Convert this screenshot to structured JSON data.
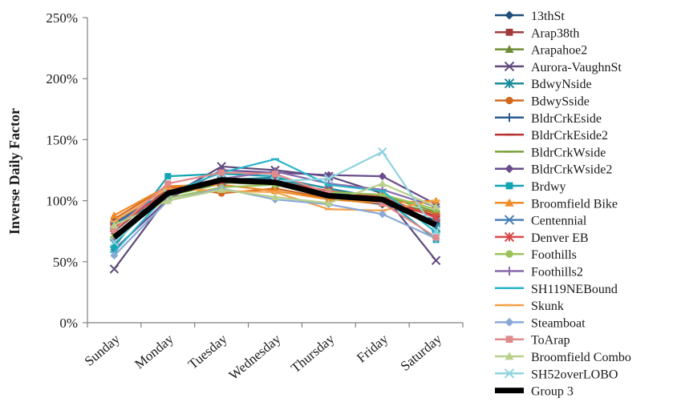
{
  "chart_data": {
    "type": "line",
    "ylabel": "Inverse Daily Factor",
    "xlabel": "",
    "categories": [
      "Sunday",
      "Monday",
      "Tuesday",
      "Wednesday",
      "Thursday",
      "Friday",
      "Saturday"
    ],
    "y_ticks": [
      "0%",
      "50%",
      "100%",
      "150%",
      "200%",
      "250%"
    ],
    "ylim": [
      0,
      250
    ],
    "grid": false,
    "legend_position": "right",
    "series": [
      {
        "name": "13thSt",
        "color": "#1f4e79",
        "marker": "diamond",
        "values": [
          80,
          108,
          118,
          117,
          105,
          100,
          82
        ]
      },
      {
        "name": "Arap38th",
        "color": "#a33a3a",
        "marker": "square",
        "values": [
          75,
          110,
          117,
          115,
          104,
          98,
          88
        ]
      },
      {
        "name": "Arapahoe2",
        "color": "#6e8b35",
        "marker": "triangle",
        "values": [
          72,
          105,
          115,
          113,
          105,
          100,
          90
        ]
      },
      {
        "name": "Aurora-VaughnSt",
        "color": "#5f4a7a",
        "marker": "x",
        "values": [
          44,
          103,
          128,
          125,
          120,
          106,
          51
        ]
      },
      {
        "name": "BdwyNside",
        "color": "#1a8c9c",
        "marker": "star",
        "values": [
          65,
          108,
          117,
          119,
          110,
          102,
          78
        ]
      },
      {
        "name": "BdwySside",
        "color": "#d2691e",
        "marker": "circle",
        "values": [
          85,
          112,
          106,
          110,
          102,
          97,
          90
        ]
      },
      {
        "name": "BldrCrkEside",
        "color": "#2b5c8f",
        "marker": "plus",
        "values": [
          82,
          107,
          115,
          116,
          103,
          97,
          84
        ]
      },
      {
        "name": "BldrCrkEside2",
        "color": "#b83232",
        "marker": "dash",
        "values": [
          78,
          108,
          116,
          115,
          106,
          100,
          87
        ]
      },
      {
        "name": "BldrCrkWside",
        "color": "#7aa33c",
        "marker": "dash",
        "values": [
          70,
          104,
          114,
          118,
          106,
          104,
          91
        ]
      },
      {
        "name": "BldrCrkWside2",
        "color": "#6a4c8c",
        "marker": "diamond",
        "values": [
          60,
          101,
          125,
          123,
          121,
          120,
          97
        ]
      },
      {
        "name": "Brdwy",
        "color": "#13a4b4",
        "marker": "square",
        "values": [
          62,
          120,
          122,
          120,
          106,
          103,
          68
        ]
      },
      {
        "name": "Broomfield Bike",
        "color": "#f08a24",
        "marker": "triangle",
        "values": [
          88,
          112,
          113,
          108,
          101,
          98,
          100
        ]
      },
      {
        "name": "Centennial",
        "color": "#4a7fb5",
        "marker": "x",
        "values": [
          80,
          108,
          116,
          118,
          105,
          100,
          82
        ]
      },
      {
        "name": "Denver EB",
        "color": "#d84a4a",
        "marker": "star",
        "values": [
          78,
          108,
          115,
          116,
          108,
          103,
          86
        ]
      },
      {
        "name": "Foothills",
        "color": "#9bc25a",
        "marker": "circle",
        "values": [
          70,
          102,
          111,
          113,
          107,
          105,
          93
        ]
      },
      {
        "name": "Foothills2",
        "color": "#8a6aaa",
        "marker": "plus",
        "values": [
          68,
          104,
          118,
          124,
          114,
          109,
          95
        ]
      },
      {
        "name": "SH119NEBound",
        "color": "#2ab3c9",
        "marker": "dash",
        "values": [
          58,
          106,
          123,
          134,
          113,
          108,
          74
        ]
      },
      {
        "name": "Skunk",
        "color": "#f5a04a",
        "marker": "dash",
        "values": [
          83,
          110,
          108,
          107,
          93,
          92,
          100
        ]
      },
      {
        "name": "Steamboat",
        "color": "#8aa9d6",
        "marker": "diamond",
        "values": [
          55,
          100,
          110,
          101,
          97,
          89,
          69
        ]
      },
      {
        "name": "ToArap",
        "color": "#e08b8b",
        "marker": "square",
        "values": [
          76,
          114,
          123,
          122,
          106,
          98,
          70
        ]
      },
      {
        "name": "Broomfield Combo",
        "color": "#b9d08a",
        "marker": "triangle",
        "values": [
          80,
          100,
          109,
          103,
          98,
          114,
          95
        ]
      },
      {
        "name": "SH52overLOBO",
        "color": "#8fd3df",
        "marker": "x",
        "values": [
          66,
          106,
          118,
          116,
          118,
          140,
          75
        ]
      },
      {
        "name": "Group 3",
        "color": "#000000",
        "marker": "none",
        "bold": true,
        "values": [
          70,
          106,
          117,
          115,
          104,
          101,
          80
        ]
      }
    ]
  }
}
